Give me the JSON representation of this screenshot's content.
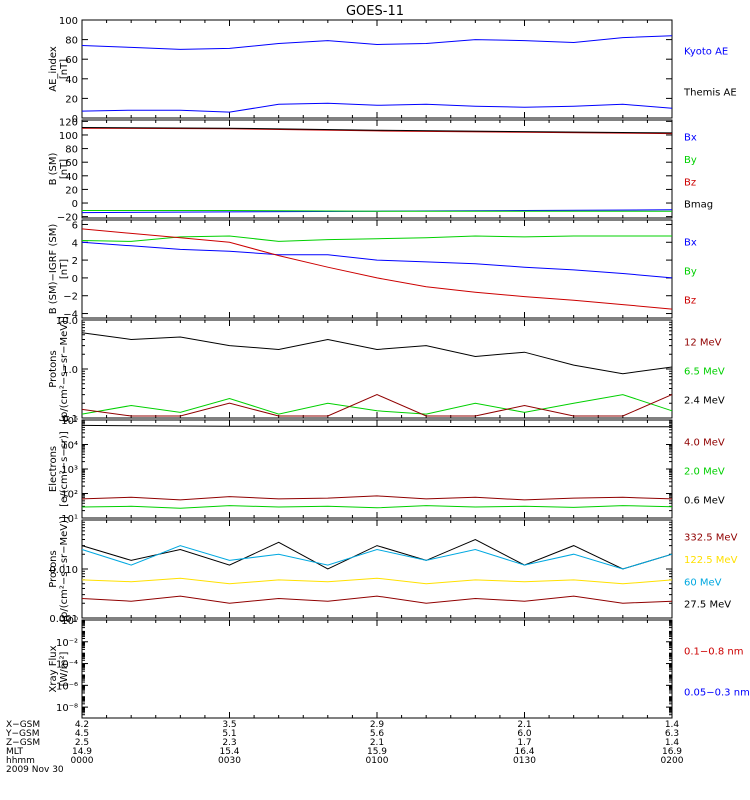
{
  "title": "GOES-11",
  "colors": {
    "black": "#000000",
    "blue": "#0000ff",
    "green": "#00d000",
    "red": "#cc0000",
    "darkred": "#900000",
    "yellow": "#ffe000",
    "cyan": "#00a8e0",
    "navy": "#0000cc"
  },
  "chart_data": [
    {
      "type": "line",
      "ylabel": [
        "AE_index",
        "[nT]"
      ],
      "ylim": [
        0,
        100
      ],
      "ticks": [
        0,
        20,
        40,
        60,
        80,
        100
      ],
      "tick_labels": [
        "0",
        "20",
        "40",
        "60",
        "80",
        "100"
      ],
      "x": [
        0,
        10,
        20,
        30,
        40,
        50,
        60,
        70,
        80,
        90,
        100,
        110,
        120
      ],
      "series": [
        {
          "name": "Kyoto AE",
          "color": "blue",
          "legend_color": "blue",
          "values": [
            74,
            72,
            70,
            71,
            76,
            79,
            75,
            76,
            80,
            79,
            77,
            82,
            84
          ]
        },
        {
          "name": "Themis AE",
          "color": "blue",
          "legend_color": "black",
          "values": [
            7,
            8,
            8,
            6,
            14,
            15,
            13,
            14,
            12,
            11,
            12,
            14,
            10
          ]
        }
      ]
    },
    {
      "type": "line",
      "ylabel": [
        "B (SM)",
        "[nT]"
      ],
      "ylim": [
        -22,
        122
      ],
      "ticks": [
        -20,
        0,
        20,
        40,
        60,
        80,
        100,
        120
      ],
      "tick_labels": [
        "−20",
        "0",
        "20",
        "40",
        "60",
        "80",
        "100",
        "120"
      ],
      "x": [
        0,
        30,
        60,
        90,
        120
      ],
      "series": [
        {
          "name": "Bx",
          "color": "blue",
          "values": [
            -14,
            -13,
            -12,
            -11,
            -10
          ]
        },
        {
          "name": "By",
          "color": "green",
          "values": [
            -11,
            -11,
            -12,
            -12,
            -12
          ]
        },
        {
          "name": "Bz",
          "color": "red",
          "values": [
            110,
            109,
            106,
            104,
            102
          ]
        },
        {
          "name": "Bmag",
          "color": "black",
          "values": [
            111,
            110,
            107,
            105,
            103
          ]
        }
      ]
    },
    {
      "type": "line",
      "ylabel": [
        "B (SM)−IGRF (SM)",
        "[nT]"
      ],
      "ylim": [
        -4.5,
        6.5
      ],
      "ticks": [
        -4,
        -2,
        0,
        2,
        4,
        6
      ],
      "tick_labels": [
        "−4",
        "−2",
        "0",
        "2",
        "4",
        "6"
      ],
      "x": [
        0,
        10,
        20,
        30,
        40,
        50,
        60,
        70,
        80,
        90,
        100,
        110,
        120
      ],
      "series": [
        {
          "name": "Bx",
          "color": "blue",
          "values": [
            4.0,
            3.6,
            3.2,
            3.0,
            2.6,
            2.6,
            2.0,
            1.8,
            1.6,
            1.2,
            0.9,
            0.5,
            0.0
          ]
        },
        {
          "name": "By",
          "color": "green",
          "values": [
            4.2,
            4.1,
            4.6,
            4.7,
            4.1,
            4.3,
            4.4,
            4.5,
            4.7,
            4.6,
            4.7,
            4.7,
            4.7
          ]
        },
        {
          "name": "Bz",
          "color": "red",
          "values": [
            5.5,
            5.0,
            4.5,
            4.0,
            2.5,
            1.2,
            0.0,
            -1.0,
            -1.6,
            -2.1,
            -2.5,
            -3.0,
            -3.5
          ]
        }
      ]
    },
    {
      "type": "line",
      "scale": "log",
      "ylabel": [
        "Protons",
        "[p/(cm²−s−sr−MeV)]"
      ],
      "ylim": [
        0.1,
        10
      ],
      "ticks": [
        0.1,
        1,
        10
      ],
      "tick_labels": [
        "0.1",
        "1.0",
        "10.0"
      ],
      "x": [
        0,
        10,
        20,
        30,
        40,
        50,
        60,
        70,
        80,
        90,
        100,
        110,
        120
      ],
      "series": [
        {
          "name": "12 MeV",
          "color": "black",
          "legend_color": "darkred",
          "values": [
            5.5,
            4.0,
            4.5,
            3.0,
            2.5,
            4.0,
            2.5,
            3.0,
            1.8,
            2.2,
            1.2,
            0.8,
            1.1
          ]
        },
        {
          "name": "6.5 MeV",
          "color": "green",
          "values": [
            0.12,
            0.18,
            0.13,
            0.25,
            0.12,
            0.2,
            0.14,
            0.12,
            0.2,
            0.13,
            0.2,
            0.3,
            0.14
          ]
        },
        {
          "name": "2.4 MeV",
          "color": "darkred",
          "legend_color": "black",
          "values": [
            0.15,
            0.11,
            0.11,
            0.2,
            0.11,
            0.11,
            0.3,
            0.11,
            0.11,
            0.18,
            0.11,
            0.11,
            0.3
          ]
        }
      ]
    },
    {
      "type": "line",
      "scale": "log",
      "ylabel": [
        "Electrons",
        "[e/(cm²−s−sr)]"
      ],
      "ylim": [
        10,
        100000
      ],
      "ticks": [
        10,
        100,
        1000,
        10000,
        100000
      ],
      "tick_labels": [
        "10¹",
        "10²",
        "10³",
        "10⁴",
        "10⁵"
      ],
      "x": [
        0,
        10,
        20,
        30,
        40,
        50,
        60,
        70,
        80,
        90,
        100,
        110,
        120
      ],
      "series": [
        {
          "name": "4.0 MeV",
          "color": "darkred",
          "values": [
            60,
            70,
            55,
            75,
            60,
            65,
            80,
            60,
            70,
            55,
            65,
            70,
            60
          ]
        },
        {
          "name": "2.0 MeV",
          "color": "green",
          "values": [
            28,
            30,
            25,
            32,
            28,
            30,
            26,
            32,
            28,
            30,
            27,
            32,
            29
          ]
        },
        {
          "name": "0.6 MeV",
          "color": "black",
          "values": [
            60000,
            58000,
            57000,
            56000,
            56000,
            55000,
            55000,
            55000,
            54000,
            54000,
            54000,
            53000,
            53000
          ]
        }
      ]
    },
    {
      "type": "line",
      "scale": "log",
      "ylabel": [
        "Protons",
        "[p/(cm²−s−sr−MeV)]"
      ],
      "ylim": [
        0.001,
        0.1
      ],
      "ticks": [
        0.001,
        0.01
      ],
      "tick_labels": [
        "0.001",
        "0.010"
      ],
      "x": [
        0,
        10,
        20,
        30,
        40,
        50,
        60,
        70,
        80,
        90,
        100,
        110,
        120
      ],
      "series": [
        {
          "name": "332.5 MeV",
          "color": "black",
          "legend_color": "darkred",
          "values": [
            0.03,
            0.015,
            0.025,
            0.012,
            0.035,
            0.01,
            0.03,
            0.015,
            0.04,
            0.012,
            0.03,
            0.01,
            0.02
          ]
        },
        {
          "name": "122.5 MeV",
          "color": "cyan",
          "legend_color": "yellow",
          "values": [
            0.025,
            0.012,
            0.03,
            0.015,
            0.02,
            0.012,
            0.025,
            0.015,
            0.025,
            0.012,
            0.02,
            0.01,
            0.02
          ]
        },
        {
          "name": "60 MeV",
          "color": "yellow",
          "legend_color": "cyan",
          "values": [
            0.006,
            0.0055,
            0.0065,
            0.005,
            0.006,
            0.0055,
            0.0065,
            0.005,
            0.006,
            0.0055,
            0.006,
            0.005,
            0.006
          ]
        },
        {
          "name": "27.5 MeV",
          "color": "darkred",
          "legend_color": "black",
          "values": [
            0.0025,
            0.0022,
            0.0028,
            0.002,
            0.0025,
            0.0022,
            0.0028,
            0.002,
            0.0025,
            0.0022,
            0.0028,
            0.002,
            0.0022
          ]
        }
      ]
    },
    {
      "type": "line",
      "scale": "log",
      "ylabel": [
        "Xray Flux",
        "[W/m²]"
      ],
      "ylim": [
        1e-09,
        1
      ],
      "ticks": [
        1e-08,
        1e-06,
        0.0001,
        0.01,
        1
      ],
      "tick_labels": [
        "10⁻⁸",
        "10⁻⁶",
        "10⁻⁴",
        "10⁻²",
        "10⁰"
      ],
      "x": [],
      "series": [
        {
          "name": "0.1−0.8 nm",
          "color": "red",
          "values": []
        },
        {
          "name": "0.05−0.3 nm",
          "color": "blue",
          "values": []
        }
      ]
    }
  ],
  "x_axis": {
    "row_labels": [
      "X−GSM",
      "Y−GSM",
      "Z−GSM",
      "MLT",
      "hhmm"
    ],
    "columns": [
      [
        "4.2",
        "4.5",
        "2.5",
        "14.9",
        "0000"
      ],
      [
        "3.5",
        "5.1",
        "2.3",
        "15.4",
        "0030"
      ],
      [
        "2.9",
        "5.6",
        "2.1",
        "15.9",
        "0100"
      ],
      [
        "2.1",
        "6.0",
        "1.7",
        "16.4",
        "0130"
      ],
      [
        "1.4",
        "6.3",
        "1.4",
        "16.9",
        "0200"
      ]
    ],
    "date": "2009 Nov 30"
  }
}
